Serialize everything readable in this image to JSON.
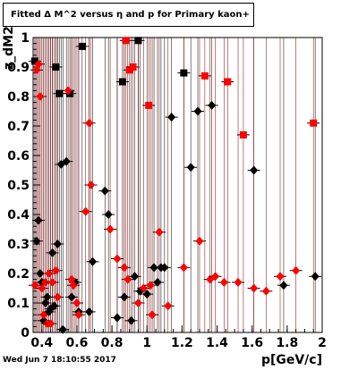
{
  "title": "Fitted Δ M^2 versus η and p for Primary kaon+",
  "footer": "Wed Jun  7 18:10:55 2017",
  "chart_data": {
    "type": "scatter",
    "xlabel": "p[GeV/c]",
    "ylabel": "z_dM2",
    "xlim": [
      0.35,
      2.0
    ],
    "ylim": [
      0,
      1.0
    ],
    "xticks": [
      "0.4",
      "0.6",
      "0.8",
      "1",
      "1.2",
      "1.4",
      "1.6",
      "1.8",
      "2"
    ],
    "yticks": [
      "0",
      "0.1",
      "0.2",
      "0.3",
      "0.4",
      "0.5",
      "0.6",
      "0.7",
      "0.8",
      "0.9",
      "1"
    ],
    "colors": {
      "black": "#000000",
      "red": "#ff0000",
      "dark_red": "#8b0000"
    },
    "series": [
      {
        "color": "black",
        "points": [
          [
            0.36,
            0.92
          ],
          [
            0.37,
            0.31
          ],
          [
            0.38,
            0.38
          ],
          [
            0.39,
            0.2
          ],
          [
            0.4,
            0.17
          ],
          [
            0.41,
            0.04
          ],
          [
            0.42,
            0.1
          ],
          [
            0.43,
            0.12
          ],
          [
            0.44,
            0.07
          ],
          [
            0.45,
            0.08
          ],
          [
            0.46,
            0.27
          ],
          [
            0.47,
            0.09
          ],
          [
            0.48,
            0.9
          ],
          [
            0.49,
            0.3
          ],
          [
            0.5,
            0.81
          ],
          [
            0.51,
            0.57
          ],
          [
            0.52,
            0.01
          ],
          [
            0.54,
            0.58
          ],
          [
            0.56,
            0.81
          ],
          [
            0.57,
            0.12
          ],
          [
            0.59,
            0.17
          ],
          [
            0.61,
            0.07
          ],
          [
            0.63,
            0.97
          ],
          [
            0.67,
            0.07
          ],
          [
            0.69,
            0.24
          ],
          [
            0.76,
            0.48
          ],
          [
            0.78,
            0.4
          ],
          [
            0.83,
            0.05
          ],
          [
            0.86,
            0.85
          ],
          [
            0.87,
            0.12
          ],
          [
            0.91,
            0.04
          ],
          [
            0.93,
            0.19
          ],
          [
            0.95,
            0.99
          ],
          [
            0.96,
            0.14
          ],
          [
            1.0,
            0.13
          ],
          [
            1.04,
            0.22
          ],
          [
            1.06,
            0.17
          ],
          [
            1.08,
            0.22
          ],
          [
            1.1,
            0.22
          ],
          [
            1.14,
            0.73
          ],
          [
            1.21,
            0.88
          ],
          [
            1.25,
            0.56
          ],
          [
            1.29,
            0.75
          ],
          [
            1.37,
            0.77
          ],
          [
            1.61,
            0.55
          ],
          [
            1.78,
            0.16
          ],
          [
            1.96,
            0.19
          ]
        ]
      },
      {
        "color": "red",
        "points": [
          [
            0.36,
            0.16
          ],
          [
            0.37,
            0.89
          ],
          [
            0.38,
            0.91
          ],
          [
            0.39,
            0.8
          ],
          [
            0.4,
            0.15
          ],
          [
            0.41,
            0.06
          ],
          [
            0.42,
            0.17
          ],
          [
            0.43,
            0.03
          ],
          [
            0.44,
            0.2
          ],
          [
            0.45,
            0.03
          ],
          [
            0.46,
            0.17
          ],
          [
            0.48,
            0.21
          ],
          [
            0.49,
            0.12
          ],
          [
            0.55,
            0.82
          ],
          [
            0.57,
            0.18
          ],
          [
            0.58,
            0.16
          ],
          [
            0.6,
            0.1
          ],
          [
            0.61,
            0.06
          ],
          [
            0.65,
            0.41
          ],
          [
            0.67,
            0.71
          ],
          [
            0.68,
            0.5
          ],
          [
            0.79,
            0.35
          ],
          [
            0.83,
            0.25
          ],
          [
            0.87,
            0.22
          ],
          [
            0.88,
            0.99
          ],
          [
            0.89,
            0.18
          ],
          [
            0.9,
            0.89
          ],
          [
            0.92,
            0.9
          ],
          [
            0.95,
            0.1
          ],
          [
            0.98,
            0.15
          ],
          [
            1.01,
            0.77
          ],
          [
            1.02,
            0.16
          ],
          [
            1.03,
            0.06
          ],
          [
            1.07,
            0.34
          ],
          [
            1.12,
            0.09
          ],
          [
            1.21,
            0.22
          ],
          [
            1.3,
            0.31
          ],
          [
            1.33,
            0.87
          ],
          [
            1.36,
            0.18
          ],
          [
            1.39,
            0.19
          ],
          [
            1.44,
            0.17
          ],
          [
            1.46,
            0.85
          ],
          [
            1.52,
            0.17
          ],
          [
            1.55,
            0.67
          ],
          [
            1.61,
            0.15
          ],
          [
            1.68,
            0.14
          ],
          [
            1.76,
            0.19
          ],
          [
            1.85,
            0.21
          ],
          [
            1.95,
            0.71
          ]
        ]
      }
    ]
  }
}
